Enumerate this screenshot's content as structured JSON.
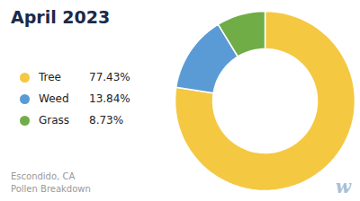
{
  "chart_data": {
    "type": "pie",
    "title": "April 2023",
    "subtitle": [
      "Escondido, CA",
      "Pollen Breakdown"
    ],
    "categories": [
      "Tree",
      "Weed",
      "Grass"
    ],
    "values": [
      77.43,
      13.84,
      8.73
    ],
    "value_labels": [
      "77.43%",
      "13.84%",
      "8.73%"
    ],
    "colors": [
      "#F5C842",
      "#5B9BD5",
      "#70AD47"
    ],
    "legend": "left",
    "annotations": [
      "w"
    ]
  }
}
